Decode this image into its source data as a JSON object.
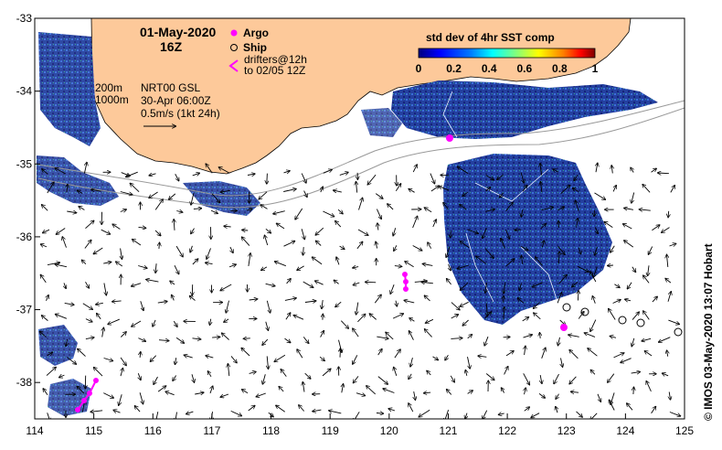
{
  "header": {
    "date": "01-May-2020",
    "time": "16Z"
  },
  "legend": {
    "argo_label": "Argo",
    "ship_label": "Ship",
    "drifters_line1": "drifters@12h",
    "drifters_line2": "to 02/05 12Z",
    "argo_color": "#ff00ff"
  },
  "info": {
    "contour_200": "200m",
    "contour_1000": "1000m",
    "product": "NRT00 GSL",
    "product_time": "30-Apr 06:00Z",
    "scale": "0.5m/s (1kt 24h)"
  },
  "colorbar": {
    "title": "std dev of 4hr SST comp",
    "ticks": [
      "0",
      "0.2",
      "0.4",
      "0.6",
      "0.8",
      "1"
    ],
    "colors": [
      "#00007f",
      "#0000ff",
      "#007fff",
      "#00ffff",
      "#7fff7f",
      "#ffff00",
      "#ff7f00",
      "#ff0000",
      "#7f0000"
    ]
  },
  "axes": {
    "x_ticks": [
      "114",
      "115",
      "116",
      "117",
      "118",
      "119",
      "120",
      "121",
      "122",
      "123",
      "124",
      "125"
    ],
    "y_ticks": [
      "-33",
      "-34",
      "-35",
      "-36",
      "-37",
      "-38"
    ],
    "lon_range": [
      114,
      125
    ],
    "lat_range": [
      -38.5,
      -33
    ]
  },
  "credit": "© IMOS 03-May-2020 13:07 Hobart",
  "colors": {
    "land": "#fdc99a",
    "ocean": "#ffffff",
    "sst_dark": "#1a2f9a",
    "sst_mid": "#2a57c9"
  }
}
